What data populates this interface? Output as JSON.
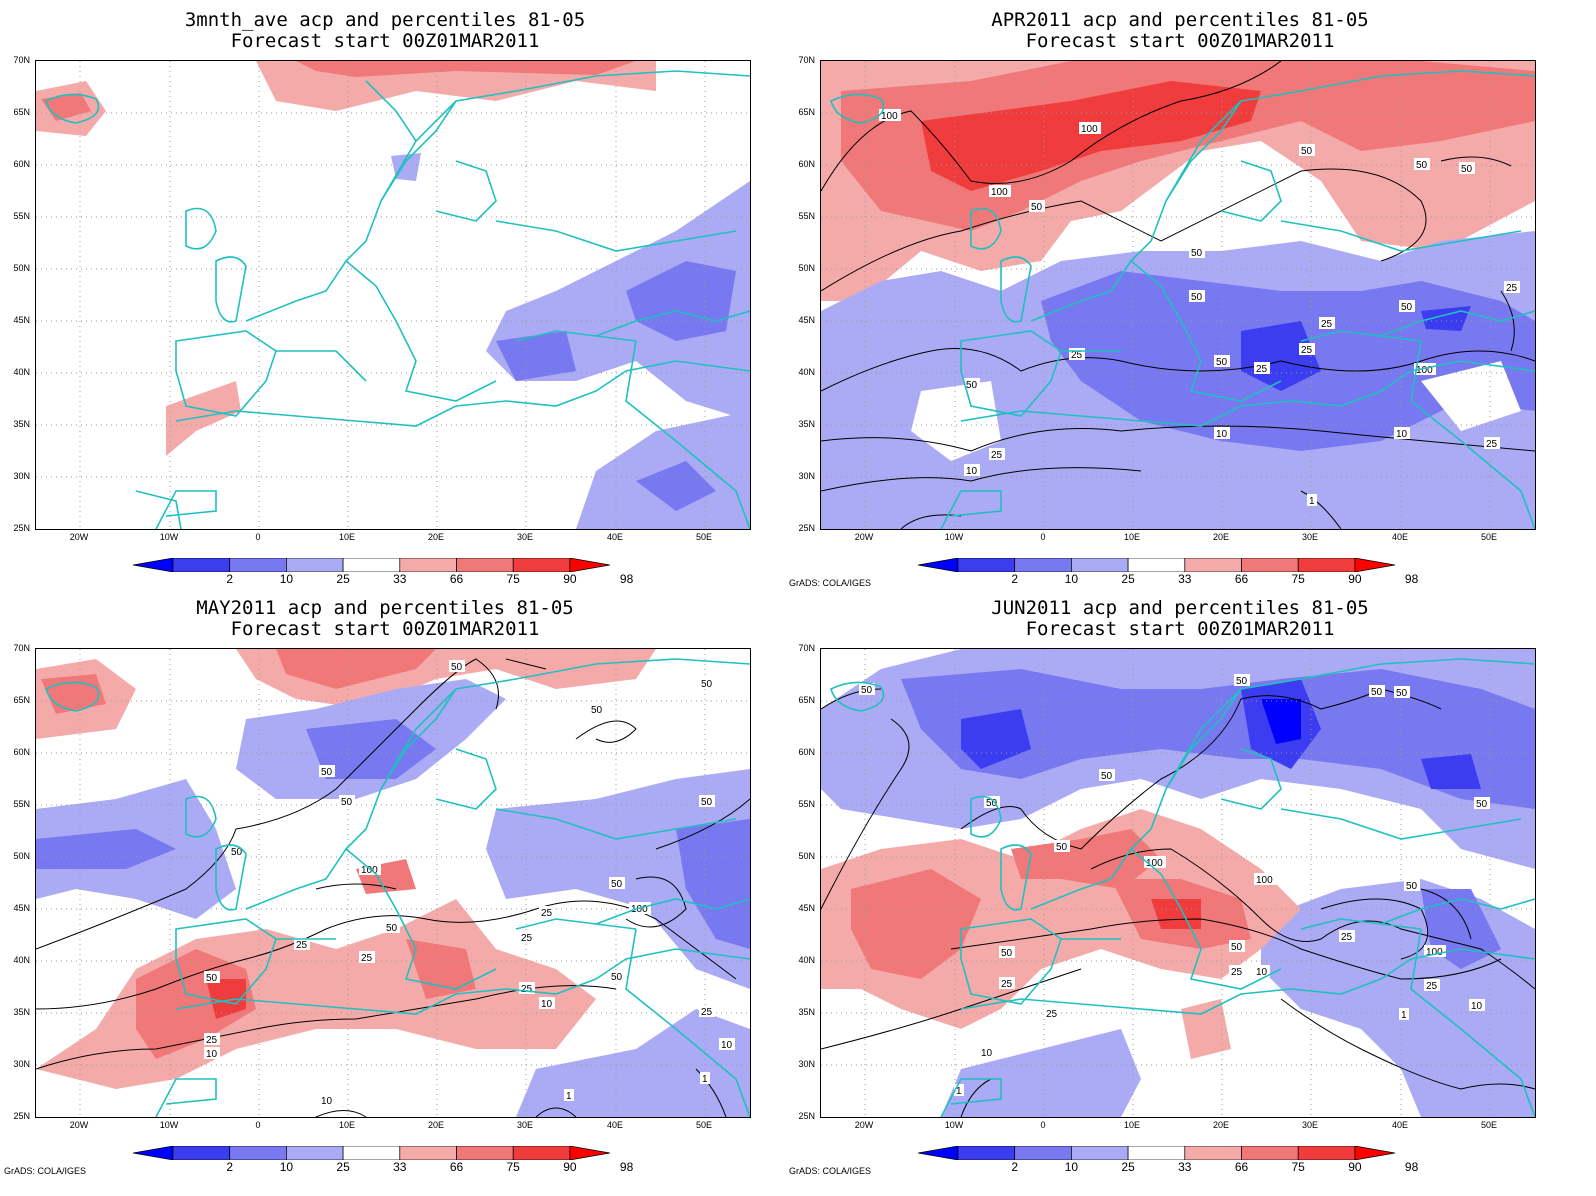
{
  "panels": [
    {
      "id": "p1",
      "title_line1": "3mnth_ave acp and percentiles 81-05",
      "title_line2": "Forecast start 00Z01MAR2011",
      "credit": ""
    },
    {
      "id": "p2",
      "title_line1": "APR2011 acp and percentiles 81-05",
      "title_line2": "Forecast start 00Z01MAR2011",
      "credit": "GrADS: COLA/IGES"
    },
    {
      "id": "p3",
      "title_line1": "MAY2011 acp and percentiles 81-05",
      "title_line2": "Forecast start 00Z01MAR2011",
      "credit": "GrADS: COLA/IGES"
    },
    {
      "id": "p4",
      "title_line1": "JUN2011 acp and percentiles 81-05",
      "title_line2": "Forecast start 00Z01MAR2011",
      "credit": "GrADS: COLA/IGES"
    }
  ],
  "axes": {
    "lat_labels": [
      "70N",
      "65N",
      "60N",
      "55N",
      "50N",
      "45N",
      "40N",
      "35N",
      "30N",
      "25N"
    ],
    "lon_labels": [
      "20W",
      "10W",
      "0",
      "10E",
      "20E",
      "30E",
      "40E",
      "50E"
    ]
  },
  "colorbar": {
    "labels": [
      "2",
      "10",
      "25",
      "33",
      "66",
      "75",
      "90",
      "98"
    ],
    "colors": [
      "#0000ff",
      "#3c3cf0",
      "#7878f0",
      "#aaaaf5",
      "#ffffff",
      "#f5aaaa",
      "#f07878",
      "#f03c3c",
      "#ff0000"
    ]
  },
  "colors": {
    "coast": "#20c0c0",
    "contour": "#000000",
    "grid": "#999999"
  }
}
